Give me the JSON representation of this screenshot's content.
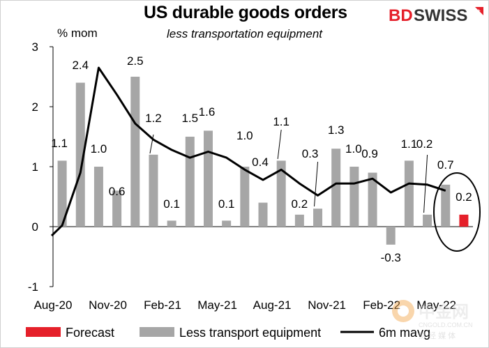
{
  "header": {
    "title": "US durable goods orders",
    "subtitle": "less transportation equipment",
    "brand_prefix": "BD",
    "brand_suffix": "SWISS"
  },
  "colors": {
    "bar": "#a6a6a6",
    "forecast": "#e5202a",
    "line": "#000000",
    "brand": "#e5202a"
  },
  "watermark": {
    "name": "中金网",
    "url": "CNGOLD.COM.CN",
    "tagline": "财 经 媒 体"
  },
  "chart_data": {
    "type": "bar",
    "title": "US durable goods orders",
    "subtitle": "less transportation equipment",
    "ylabel": "% mom",
    "ylim": [
      -1,
      3
    ],
    "yticks": [
      -1,
      0,
      1,
      2,
      3
    ],
    "categories": [
      "Aug-20",
      "Sep-20",
      "Oct-20",
      "Nov-20",
      "Dec-20",
      "Jan-21",
      "Feb-21",
      "Mar-21",
      "Apr-21",
      "May-21",
      "Jun-21",
      "Jul-21",
      "Aug-21",
      "Sep-21",
      "Oct-21",
      "Nov-21",
      "Dec-21",
      "Jan-22",
      "Feb-22",
      "Mar-22",
      "Apr-22",
      "May-22",
      "Jun-22"
    ],
    "xtick_labels": [
      "Aug-20",
      "Nov-20",
      "Feb-21",
      "May-21",
      "Aug-21",
      "Nov-21",
      "Feb-22",
      "May-22"
    ],
    "series": [
      {
        "name": "Less transport equipment",
        "type": "bar",
        "values": [
          1.1,
          2.4,
          1.0,
          0.6,
          2.5,
          1.2,
          0.1,
          1.5,
          1.6,
          0.1,
          1.0,
          0.4,
          1.1,
          0.2,
          0.3,
          1.3,
          1.0,
          0.9,
          -0.3,
          1.1,
          0.2,
          0.7,
          null
        ]
      },
      {
        "name": "Forecast",
        "type": "bar",
        "values": [
          null,
          null,
          null,
          null,
          null,
          null,
          null,
          null,
          null,
          null,
          null,
          null,
          null,
          null,
          null,
          null,
          null,
          null,
          null,
          null,
          null,
          null,
          0.2
        ]
      },
      {
        "name": "6m mavg",
        "type": "line",
        "x_start": "Jul-20",
        "values": [
          -0.15,
          0.02,
          0.9,
          2.65,
          2.2,
          1.72,
          1.45,
          1.28,
          1.15,
          1.25,
          1.15,
          0.95,
          0.78,
          0.95,
          0.72,
          0.52,
          0.72,
          0.72,
          0.8,
          0.57,
          0.72,
          0.7,
          0.6
        ]
      }
    ],
    "data_labels": [
      "1.1",
      "2.4",
      "1.0",
      "0.6",
      "2.5",
      "1.2",
      "0.1",
      "1.5",
      "1.6",
      "0.1",
      "1.0",
      "0.4",
      "1.1",
      "0.2",
      "0.3",
      "1.3",
      "1.0",
      "0.9",
      "-0.3",
      "1.1",
      "0.2",
      "0.7",
      "0.2"
    ],
    "legend": [
      "Forecast",
      "Less transport equipment",
      "6m mavg"
    ],
    "legend_position": "bottom",
    "annotation": "forecast circled"
  }
}
